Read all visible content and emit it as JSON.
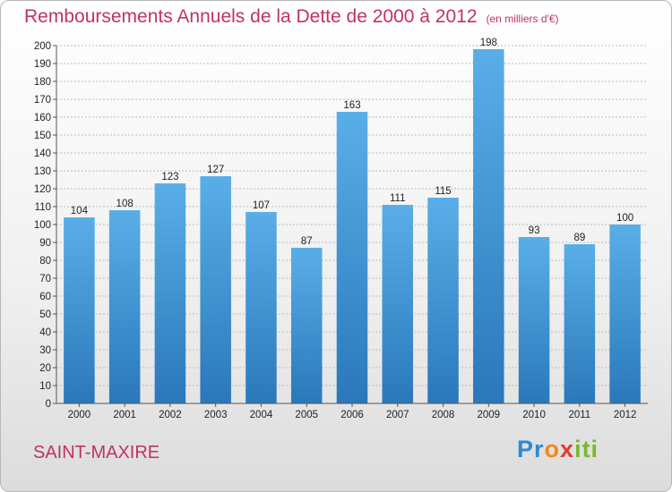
{
  "header": {
    "title": "Remboursements Annuels de la Dette de 2000 à 2012",
    "subtitle": "(en milliers d'€)"
  },
  "footer": {
    "place": "SAINT-MAXIRE",
    "logo_text": "Proxiti"
  },
  "colors": {
    "title": "#c0316a",
    "bar_light": "#5aaee8",
    "bar_dark": "#2a78ba",
    "grid": "#bbbbbb"
  },
  "chart_data": {
    "type": "bar",
    "title": "Remboursements Annuels de la Dette de 2000 à 2012",
    "subtitle": "(en milliers d'€)",
    "categories": [
      "2000",
      "2001",
      "2002",
      "2003",
      "2004",
      "2005",
      "2006",
      "2007",
      "2008",
      "2009",
      "2010",
      "2011",
      "2012"
    ],
    "values": [
      104,
      108,
      123,
      127,
      107,
      87,
      163,
      111,
      115,
      198,
      93,
      89,
      100
    ],
    "ylim": [
      0,
      200
    ],
    "ytick_step": 10,
    "grid": true,
    "data_labels": true
  }
}
